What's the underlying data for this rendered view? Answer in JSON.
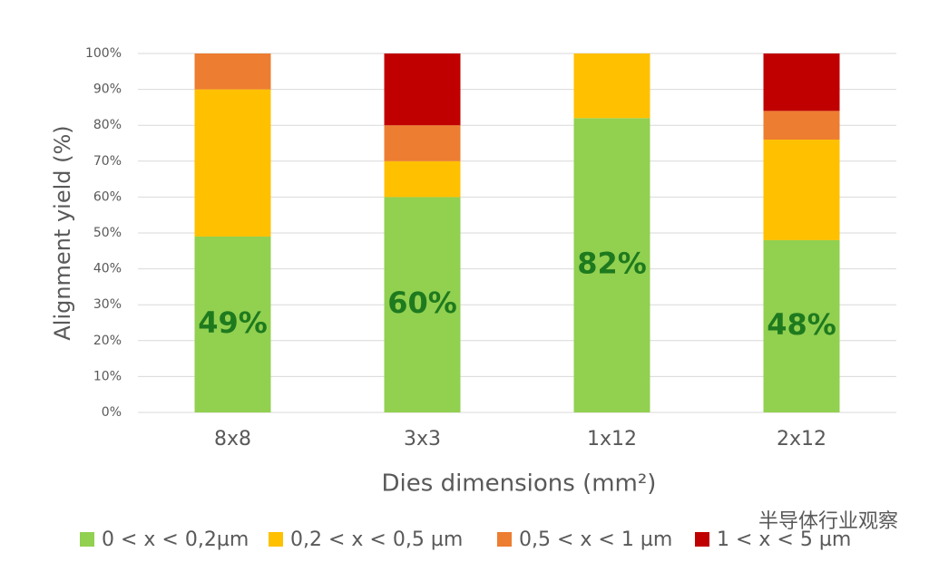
{
  "chart_data": {
    "type": "stacked_bar",
    "ylabel": "Alignment yield (%)",
    "xlabel": "Dies dimensions (mm²)",
    "categories": [
      "8x8",
      "3x3",
      "1x12",
      "2x12"
    ],
    "series": [
      {
        "name": "0 < x < 0,2µm",
        "color": "#92d050",
        "values": [
          49,
          60,
          82,
          48
        ],
        "value_labels": [
          "49%",
          "60%",
          "82%",
          "48%"
        ]
      },
      {
        "name": "0,2 < x < 0,5 µm",
        "color": "#ffc000",
        "values": [
          41,
          10,
          18,
          28
        ]
      },
      {
        "name": "0,5 < x < 1 µm",
        "color": "#ed7d31",
        "values": [
          10,
          10,
          0,
          8
        ]
      },
      {
        "name": "1 < x < 5  µm",
        "color": "#c00000",
        "values": [
          0,
          20,
          0,
          16
        ]
      }
    ],
    "ylim": [
      0,
      100
    ],
    "yticks": [
      {
        "value": 0,
        "label": "0%"
      },
      {
        "value": 10,
        "label": "10%"
      },
      {
        "value": 20,
        "label": "20%"
      },
      {
        "value": 30,
        "label": "30%"
      },
      {
        "value": 40,
        "label": "40%"
      },
      {
        "value": 50,
        "label": "50%"
      },
      {
        "value": 60,
        "label": "60%"
      },
      {
        "value": 70,
        "label": "70%"
      },
      {
        "value": 80,
        "label": "80%"
      },
      {
        "value": 90,
        "label": "90%"
      },
      {
        "value": 100,
        "label": "100%"
      }
    ],
    "grid": true,
    "watermark": "半导体行业观察"
  }
}
